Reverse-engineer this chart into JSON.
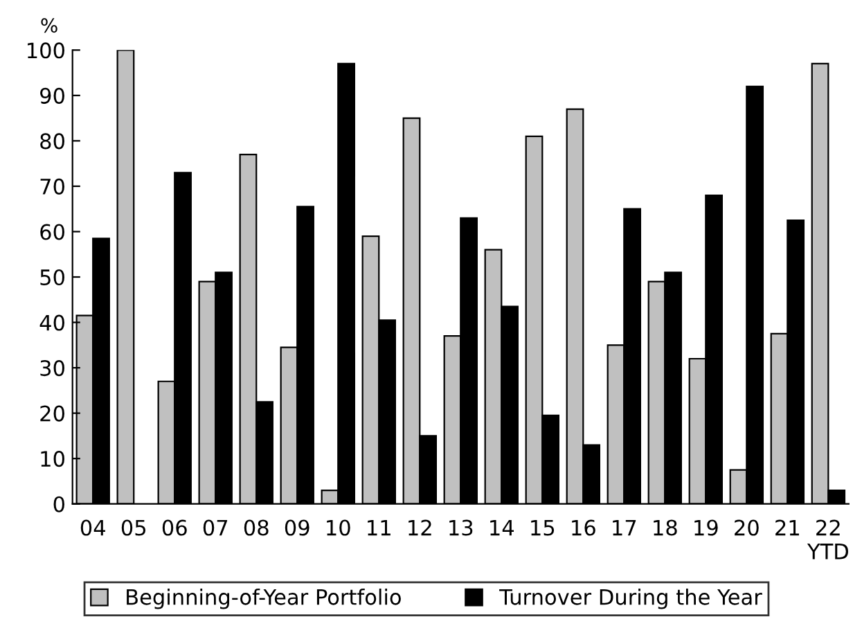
{
  "chart_data": {
    "type": "bar",
    "ylabel": "%",
    "categories": [
      "04",
      "05",
      "06",
      "07",
      "08",
      "09",
      "10",
      "11",
      "12",
      "13",
      "14",
      "15",
      "16",
      "17",
      "18",
      "19",
      "20",
      "21",
      "22\nYTD"
    ],
    "series": [
      {
        "name": "Beginning-of-Year Portfolio",
        "color": "#c0c0c0",
        "values": [
          41.5,
          100,
          27,
          49,
          77,
          34.5,
          3,
          59,
          85,
          37,
          56,
          81,
          87,
          35,
          49,
          32,
          7.5,
          37.5,
          97
        ]
      },
      {
        "name": "Turnover During the Year",
        "color": "#000000",
        "values": [
          58.5,
          null,
          73,
          51,
          22.5,
          65.5,
          97,
          40.5,
          15,
          63,
          43.5,
          19.5,
          13,
          65,
          51,
          68,
          92,
          62.5,
          3
        ]
      }
    ],
    "ylim": [
      0,
      100
    ],
    "yticks": [
      0,
      10,
      20,
      30,
      40,
      50,
      60,
      70,
      80,
      90,
      100
    ],
    "grid": false,
    "legend": "bottom"
  }
}
